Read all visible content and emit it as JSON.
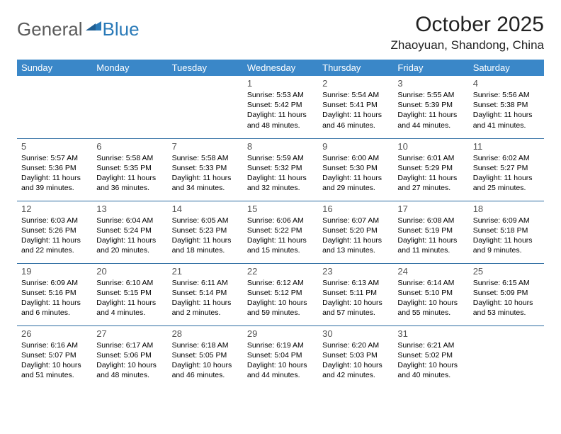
{
  "logo": {
    "word1": "General",
    "word2": "Blue"
  },
  "title": "October 2025",
  "location": "Zhaoyuan, Shandong, China",
  "colors": {
    "header_bg": "#3a87c8",
    "header_text": "#ffffff",
    "row_border": "#2a6aa0",
    "logo_gray": "#5a5a5a",
    "logo_blue": "#2a7ab8"
  },
  "weekdays": [
    "Sunday",
    "Monday",
    "Tuesday",
    "Wednesday",
    "Thursday",
    "Friday",
    "Saturday"
  ],
  "weeks": [
    [
      null,
      null,
      null,
      {
        "n": "1",
        "sr": "Sunrise: 5:53 AM",
        "ss": "Sunset: 5:42 PM",
        "dl": "Daylight: 11 hours and 48 minutes."
      },
      {
        "n": "2",
        "sr": "Sunrise: 5:54 AM",
        "ss": "Sunset: 5:41 PM",
        "dl": "Daylight: 11 hours and 46 minutes."
      },
      {
        "n": "3",
        "sr": "Sunrise: 5:55 AM",
        "ss": "Sunset: 5:39 PM",
        "dl": "Daylight: 11 hours and 44 minutes."
      },
      {
        "n": "4",
        "sr": "Sunrise: 5:56 AM",
        "ss": "Sunset: 5:38 PM",
        "dl": "Daylight: 11 hours and 41 minutes."
      }
    ],
    [
      {
        "n": "5",
        "sr": "Sunrise: 5:57 AM",
        "ss": "Sunset: 5:36 PM",
        "dl": "Daylight: 11 hours and 39 minutes."
      },
      {
        "n": "6",
        "sr": "Sunrise: 5:58 AM",
        "ss": "Sunset: 5:35 PM",
        "dl": "Daylight: 11 hours and 36 minutes."
      },
      {
        "n": "7",
        "sr": "Sunrise: 5:58 AM",
        "ss": "Sunset: 5:33 PM",
        "dl": "Daylight: 11 hours and 34 minutes."
      },
      {
        "n": "8",
        "sr": "Sunrise: 5:59 AM",
        "ss": "Sunset: 5:32 PM",
        "dl": "Daylight: 11 hours and 32 minutes."
      },
      {
        "n": "9",
        "sr": "Sunrise: 6:00 AM",
        "ss": "Sunset: 5:30 PM",
        "dl": "Daylight: 11 hours and 29 minutes."
      },
      {
        "n": "10",
        "sr": "Sunrise: 6:01 AM",
        "ss": "Sunset: 5:29 PM",
        "dl": "Daylight: 11 hours and 27 minutes."
      },
      {
        "n": "11",
        "sr": "Sunrise: 6:02 AM",
        "ss": "Sunset: 5:27 PM",
        "dl": "Daylight: 11 hours and 25 minutes."
      }
    ],
    [
      {
        "n": "12",
        "sr": "Sunrise: 6:03 AM",
        "ss": "Sunset: 5:26 PM",
        "dl": "Daylight: 11 hours and 22 minutes."
      },
      {
        "n": "13",
        "sr": "Sunrise: 6:04 AM",
        "ss": "Sunset: 5:24 PM",
        "dl": "Daylight: 11 hours and 20 minutes."
      },
      {
        "n": "14",
        "sr": "Sunrise: 6:05 AM",
        "ss": "Sunset: 5:23 PM",
        "dl": "Daylight: 11 hours and 18 minutes."
      },
      {
        "n": "15",
        "sr": "Sunrise: 6:06 AM",
        "ss": "Sunset: 5:22 PM",
        "dl": "Daylight: 11 hours and 15 minutes."
      },
      {
        "n": "16",
        "sr": "Sunrise: 6:07 AM",
        "ss": "Sunset: 5:20 PM",
        "dl": "Daylight: 11 hours and 13 minutes."
      },
      {
        "n": "17",
        "sr": "Sunrise: 6:08 AM",
        "ss": "Sunset: 5:19 PM",
        "dl": "Daylight: 11 hours and 11 minutes."
      },
      {
        "n": "18",
        "sr": "Sunrise: 6:09 AM",
        "ss": "Sunset: 5:18 PM",
        "dl": "Daylight: 11 hours and 9 minutes."
      }
    ],
    [
      {
        "n": "19",
        "sr": "Sunrise: 6:09 AM",
        "ss": "Sunset: 5:16 PM",
        "dl": "Daylight: 11 hours and 6 minutes."
      },
      {
        "n": "20",
        "sr": "Sunrise: 6:10 AM",
        "ss": "Sunset: 5:15 PM",
        "dl": "Daylight: 11 hours and 4 minutes."
      },
      {
        "n": "21",
        "sr": "Sunrise: 6:11 AM",
        "ss": "Sunset: 5:14 PM",
        "dl": "Daylight: 11 hours and 2 minutes."
      },
      {
        "n": "22",
        "sr": "Sunrise: 6:12 AM",
        "ss": "Sunset: 5:12 PM",
        "dl": "Daylight: 10 hours and 59 minutes."
      },
      {
        "n": "23",
        "sr": "Sunrise: 6:13 AM",
        "ss": "Sunset: 5:11 PM",
        "dl": "Daylight: 10 hours and 57 minutes."
      },
      {
        "n": "24",
        "sr": "Sunrise: 6:14 AM",
        "ss": "Sunset: 5:10 PM",
        "dl": "Daylight: 10 hours and 55 minutes."
      },
      {
        "n": "25",
        "sr": "Sunrise: 6:15 AM",
        "ss": "Sunset: 5:09 PM",
        "dl": "Daylight: 10 hours and 53 minutes."
      }
    ],
    [
      {
        "n": "26",
        "sr": "Sunrise: 6:16 AM",
        "ss": "Sunset: 5:07 PM",
        "dl": "Daylight: 10 hours and 51 minutes."
      },
      {
        "n": "27",
        "sr": "Sunrise: 6:17 AM",
        "ss": "Sunset: 5:06 PM",
        "dl": "Daylight: 10 hours and 48 minutes."
      },
      {
        "n": "28",
        "sr": "Sunrise: 6:18 AM",
        "ss": "Sunset: 5:05 PM",
        "dl": "Daylight: 10 hours and 46 minutes."
      },
      {
        "n": "29",
        "sr": "Sunrise: 6:19 AM",
        "ss": "Sunset: 5:04 PM",
        "dl": "Daylight: 10 hours and 44 minutes."
      },
      {
        "n": "30",
        "sr": "Sunrise: 6:20 AM",
        "ss": "Sunset: 5:03 PM",
        "dl": "Daylight: 10 hours and 42 minutes."
      },
      {
        "n": "31",
        "sr": "Sunrise: 6:21 AM",
        "ss": "Sunset: 5:02 PM",
        "dl": "Daylight: 10 hours and 40 minutes."
      },
      null
    ]
  ]
}
